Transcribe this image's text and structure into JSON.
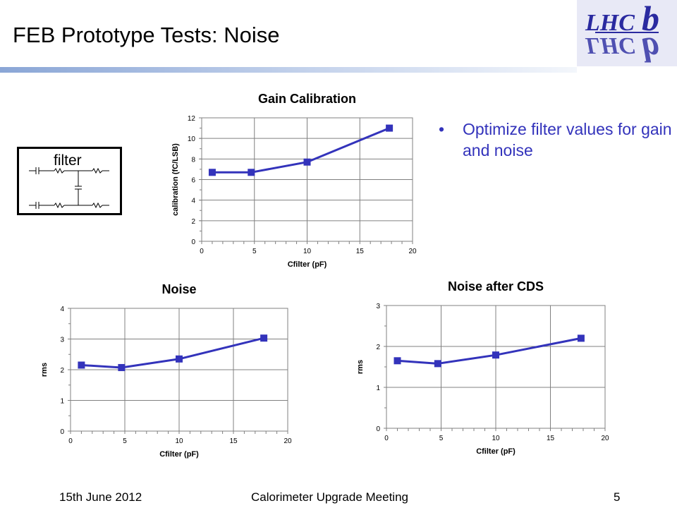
{
  "slide": {
    "title": "FEB Prototype Tests: Noise",
    "bullet_marker": "•",
    "bullet": "Optimize filter values for gain and noise",
    "filter_label": "filter",
    "logo_text": "LHCb"
  },
  "footer": {
    "date": "15th June 2012",
    "meeting": "Calorimeter Upgrade Meeting",
    "page": "5"
  },
  "colors": {
    "series": "#3333bb",
    "accent": "#3333bb",
    "title_bar": "#8aa6d6"
  },
  "chart_data": [
    {
      "type": "line",
      "title": "Gain Calibration",
      "xlabel": "Cfilter (pF)",
      "ylabel": "calibration (fC/LSB)",
      "xlim": [
        0,
        20
      ],
      "ylim": [
        0,
        12
      ],
      "xticks": [
        0,
        5,
        10,
        15,
        20
      ],
      "yticks": [
        0,
        2,
        4,
        6,
        8,
        10,
        12
      ],
      "grid": true,
      "series": [
        {
          "x": [
            1,
            4.7,
            10,
            17.8
          ],
          "y": [
            6.7,
            6.7,
            7.7,
            11
          ]
        }
      ]
    },
    {
      "type": "line",
      "title": "Noise",
      "xlabel": "Cfilter (pF)",
      "ylabel": "rms",
      "xlim": [
        0,
        20
      ],
      "ylim": [
        0,
        4
      ],
      "xticks": [
        0,
        5,
        10,
        15,
        20
      ],
      "yticks": [
        0,
        1,
        2,
        3,
        4
      ],
      "grid": true,
      "series": [
        {
          "x": [
            1,
            4.7,
            10,
            17.8
          ],
          "y": [
            2.15,
            2.07,
            2.35,
            3.03
          ]
        }
      ]
    },
    {
      "type": "line",
      "title": "Noise after CDS",
      "xlabel": "Cfilter (pF)",
      "ylabel": "rms",
      "xlim": [
        0,
        20
      ],
      "ylim": [
        0,
        3
      ],
      "xticks": [
        0,
        5,
        10,
        15,
        20
      ],
      "yticks": [
        0,
        1,
        2,
        3
      ],
      "grid": true,
      "series": [
        {
          "x": [
            1,
            4.7,
            10,
            17.8
          ],
          "y": [
            1.65,
            1.58,
            1.79,
            2.2
          ]
        }
      ]
    }
  ]
}
